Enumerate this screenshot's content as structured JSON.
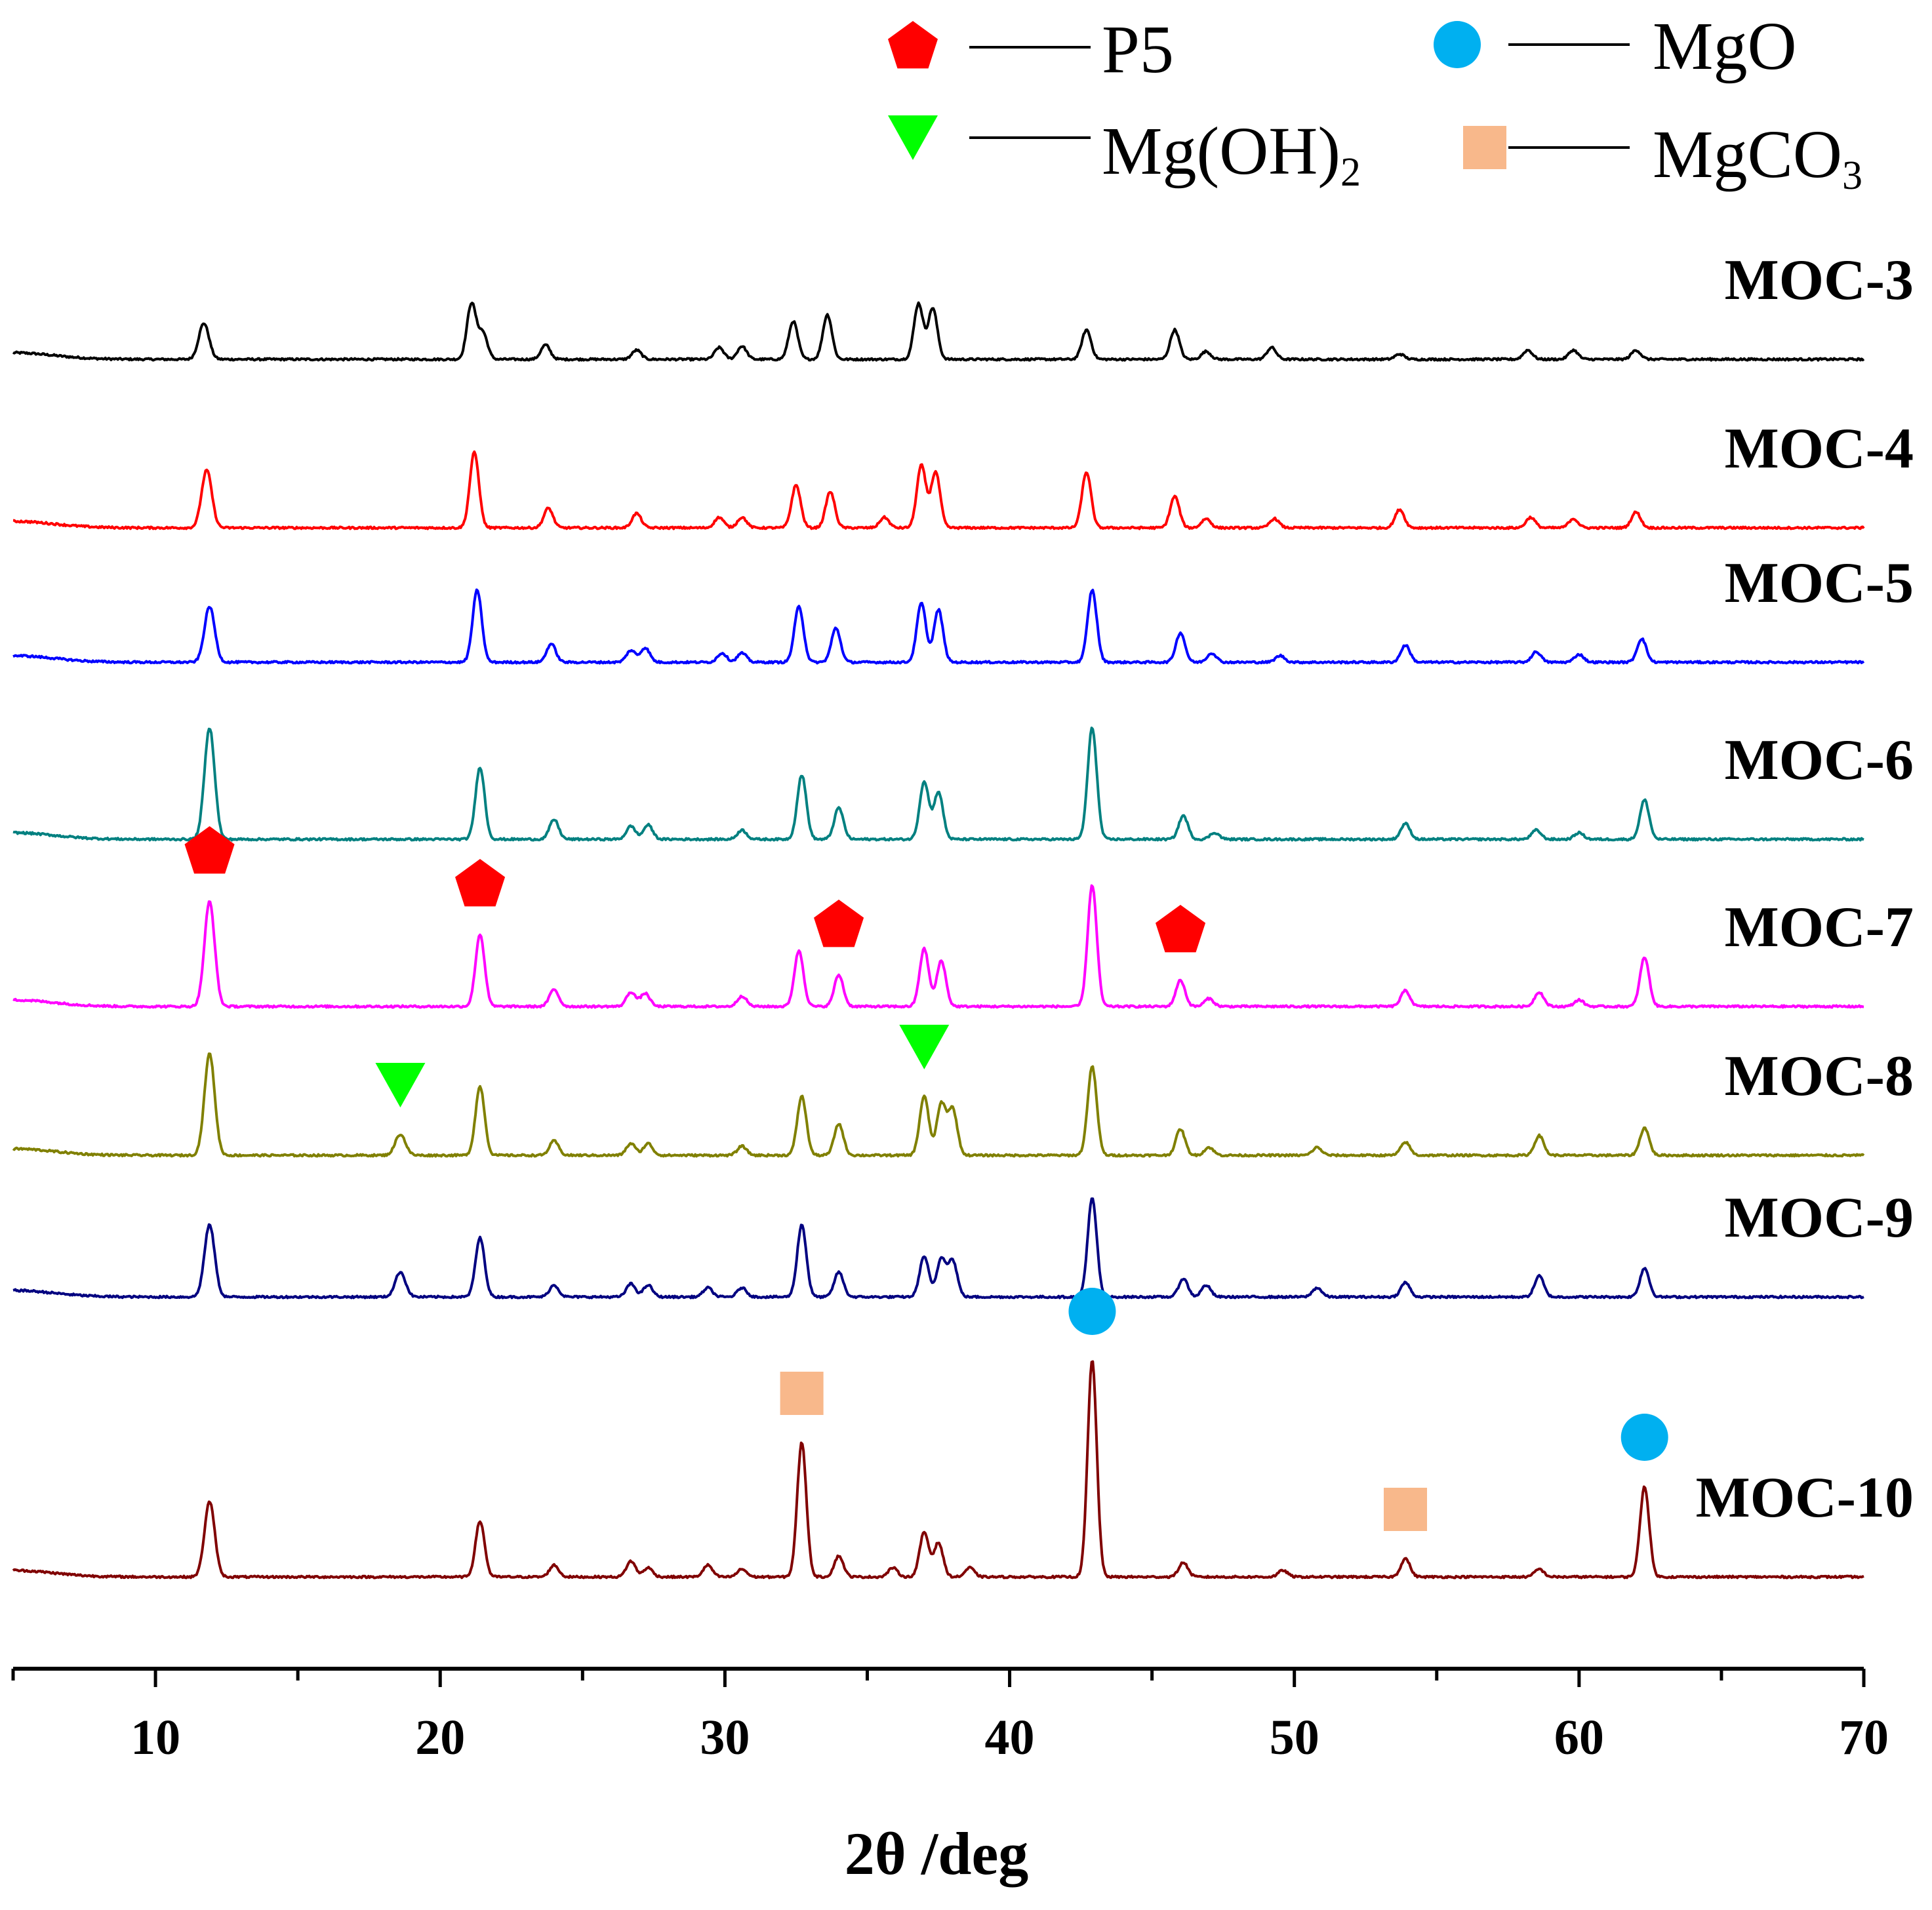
{
  "chart_data": {
    "type": "line",
    "title": "",
    "xlabel": "2θ /deg",
    "ylabel": "",
    "xlim": [
      5,
      70
    ],
    "xticks": [
      10,
      20,
      30,
      40,
      50,
      60,
      70
    ],
    "grid": false,
    "legend_position": "top-right",
    "legend": [
      {
        "marker": "pentagon",
        "color": "#ff0000",
        "label": "P5",
        "label_sub": ""
      },
      {
        "marker": "circle",
        "color": "#00b0f0",
        "label": "MgO",
        "label_sub": ""
      },
      {
        "marker": "triangle-down",
        "color": "#00ff00",
        "label": "Mg(OH)",
        "label_sub": "2"
      },
      {
        "marker": "square",
        "color": "#f8b88b",
        "label": "MgCO",
        "label_sub": "3"
      }
    ],
    "series": [
      {
        "name": "MOC-3",
        "color": "#000000",
        "peaks": [
          [
            11.7,
            55
          ],
          [
            21.1,
            85
          ],
          [
            21.5,
            40
          ],
          [
            23.7,
            22
          ],
          [
            26.9,
            14
          ],
          [
            29.8,
            18
          ],
          [
            30.6,
            20
          ],
          [
            32.4,
            58
          ],
          [
            33.6,
            68
          ],
          [
            36.8,
            85
          ],
          [
            37.3,
            78
          ],
          [
            42.7,
            45
          ],
          [
            45.8,
            45
          ],
          [
            46.9,
            12
          ],
          [
            49.2,
            18
          ],
          [
            53.7,
            8
          ],
          [
            58.2,
            14
          ],
          [
            59.8,
            14
          ],
          [
            62.0,
            14
          ]
        ]
      },
      {
        "name": "MOC-4",
        "color": "#ff0000",
        "peaks": [
          [
            11.8,
            88
          ],
          [
            21.2,
            115
          ],
          [
            23.8,
            30
          ],
          [
            26.9,
            22
          ],
          [
            29.8,
            16
          ],
          [
            30.6,
            16
          ],
          [
            32.5,
            65
          ],
          [
            33.7,
            55
          ],
          [
            35.6,
            16
          ],
          [
            36.9,
            95
          ],
          [
            37.4,
            85
          ],
          [
            42.7,
            85
          ],
          [
            45.8,
            48
          ],
          [
            46.9,
            14
          ],
          [
            49.3,
            14
          ],
          [
            53.7,
            28
          ],
          [
            58.3,
            16
          ],
          [
            59.8,
            14
          ],
          [
            62.0,
            24
          ]
        ]
      },
      {
        "name": "MOC-5",
        "color": "#0000ff",
        "peaks": [
          [
            11.9,
            85
          ],
          [
            21.3,
            110
          ],
          [
            23.9,
            28
          ],
          [
            26.7,
            18
          ],
          [
            27.2,
            22
          ],
          [
            29.9,
            14
          ],
          [
            30.6,
            14
          ],
          [
            32.6,
            85
          ],
          [
            33.9,
            52
          ],
          [
            36.9,
            90
          ],
          [
            37.5,
            80
          ],
          [
            42.9,
            110
          ],
          [
            46.0,
            45
          ],
          [
            47.1,
            14
          ],
          [
            49.5,
            10
          ],
          [
            53.9,
            26
          ],
          [
            58.5,
            16
          ],
          [
            60.0,
            12
          ],
          [
            62.2,
            36
          ]
        ]
      },
      {
        "name": "MOC-6",
        "color": "#008080",
        "peaks": [
          [
            11.9,
            170
          ],
          [
            21.4,
            110
          ],
          [
            24.0,
            30
          ],
          [
            26.7,
            20
          ],
          [
            27.3,
            22
          ],
          [
            30.6,
            14
          ],
          [
            32.7,
            98
          ],
          [
            34.0,
            48
          ],
          [
            37.0,
            88
          ],
          [
            37.5,
            72
          ],
          [
            42.9,
            170
          ],
          [
            46.1,
            36
          ],
          [
            47.2,
            10
          ],
          [
            53.9,
            24
          ],
          [
            58.5,
            14
          ],
          [
            60.0,
            10
          ],
          [
            62.3,
            60
          ]
        ]
      },
      {
        "name": "MOC-7",
        "color": "#ff00ff",
        "peaks": [
          [
            11.9,
            160
          ],
          [
            21.4,
            110
          ],
          [
            24.0,
            26
          ],
          [
            26.7,
            22
          ],
          [
            27.2,
            20
          ],
          [
            30.6,
            16
          ],
          [
            32.6,
            85
          ],
          [
            34.0,
            48
          ],
          [
            37.0,
            88
          ],
          [
            37.6,
            70
          ],
          [
            42.9,
            185
          ],
          [
            46.0,
            40
          ],
          [
            47.0,
            12
          ],
          [
            53.9,
            24
          ],
          [
            58.6,
            22
          ],
          [
            60.0,
            10
          ],
          [
            62.3,
            75
          ]
        ]
      },
      {
        "name": "MOC-8",
        "color": "#808000",
        "peaks": [
          [
            11.9,
            155
          ],
          [
            18.6,
            32
          ],
          [
            21.4,
            105
          ],
          [
            24.0,
            22
          ],
          [
            26.7,
            18
          ],
          [
            27.3,
            18
          ],
          [
            30.6,
            14
          ],
          [
            32.7,
            90
          ],
          [
            34.0,
            48
          ],
          [
            37.0,
            90
          ],
          [
            37.6,
            78
          ],
          [
            38.0,
            70
          ],
          [
            42.9,
            135
          ],
          [
            46.0,
            40
          ],
          [
            47.0,
            12
          ],
          [
            50.8,
            12
          ],
          [
            53.9,
            20
          ],
          [
            58.6,
            30
          ],
          [
            62.3,
            42
          ]
        ]
      },
      {
        "name": "MOC-9",
        "color": "#000080",
        "peaks": [
          [
            11.9,
            110
          ],
          [
            18.6,
            38
          ],
          [
            21.4,
            90
          ],
          [
            24.0,
            18
          ],
          [
            26.7,
            20
          ],
          [
            27.3,
            18
          ],
          [
            29.4,
            14
          ],
          [
            30.6,
            14
          ],
          [
            32.7,
            110
          ],
          [
            34.0,
            38
          ],
          [
            37.0,
            62
          ],
          [
            37.6,
            58
          ],
          [
            38.0,
            55
          ],
          [
            42.9,
            150
          ],
          [
            46.1,
            28
          ],
          [
            46.9,
            18
          ],
          [
            50.8,
            14
          ],
          [
            53.9,
            22
          ],
          [
            58.6,
            32
          ],
          [
            62.3,
            44
          ]
        ]
      },
      {
        "name": "MOC-10",
        "color": "#800000",
        "peaks": [
          [
            11.9,
            115
          ],
          [
            21.4,
            85
          ],
          [
            24.0,
            18
          ],
          [
            26.7,
            24
          ],
          [
            27.3,
            14
          ],
          [
            29.4,
            18
          ],
          [
            30.6,
            12
          ],
          [
            32.7,
            205
          ],
          [
            34.0,
            32
          ],
          [
            35.9,
            14
          ],
          [
            37.0,
            68
          ],
          [
            37.5,
            52
          ],
          [
            38.6,
            14
          ],
          [
            42.9,
            330
          ],
          [
            46.1,
            22
          ],
          [
            49.6,
            10
          ],
          [
            53.9,
            28
          ],
          [
            58.6,
            12
          ],
          [
            62.3,
            138
          ]
        ]
      }
    ],
    "markers": [
      {
        "series": "MOC-7",
        "type": "pentagon",
        "x": 11.9
      },
      {
        "series": "MOC-7",
        "type": "pentagon",
        "x": 21.4
      },
      {
        "series": "MOC-7",
        "type": "pentagon",
        "x": 34.0
      },
      {
        "series": "MOC-7",
        "type": "pentagon",
        "x": 46.0
      },
      {
        "series": "MOC-8",
        "type": "triangle-down",
        "x": 18.6
      },
      {
        "series": "MOC-8",
        "type": "triangle-down",
        "x": 37.0
      },
      {
        "series": "MOC-10",
        "type": "circle",
        "x": 42.9
      },
      {
        "series": "MOC-10",
        "type": "circle",
        "x": 62.3
      },
      {
        "series": "MOC-10",
        "type": "square",
        "x": 32.7
      },
      {
        "series": "MOC-10",
        "type": "square",
        "x": 53.9
      }
    ]
  }
}
